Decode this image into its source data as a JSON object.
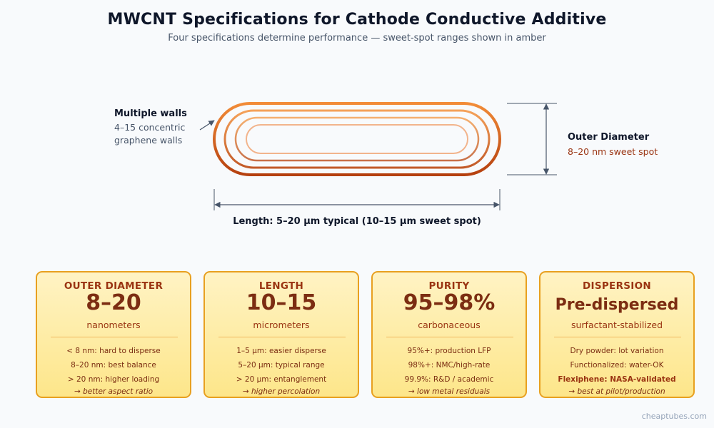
{
  "header": {
    "title": "MWCNT Specifications for Cathode Conductive Additive",
    "subtitle": "Four specifications determine performance — sweet-spot ranges shown in amber"
  },
  "diagram": {
    "walls_label": {
      "title": "Multiple walls",
      "line1": "4–15 concentric",
      "line2": "graphene walls"
    },
    "diameter_label": {
      "title": "Outer Diameter",
      "subtitle": "8–20 nm sweet spot"
    },
    "length_label": "Length: 5–20 µm typical (10–15 µm sweet spot)",
    "colors": {
      "outer_wall_top": "#f28c38",
      "outer_wall_bottom": "#b5400f",
      "inner_wall": "#f2b48c",
      "dimension_line": "#475569"
    }
  },
  "cards": [
    {
      "heading": "OUTER DIAMETER",
      "value": "8–20",
      "unit": "nanometers",
      "lines": [
        "< 8 nm: hard to disperse",
        "8–20 nm: best balance",
        "> 20 nm: higher loading"
      ],
      "footer": "→ better aspect ratio"
    },
    {
      "heading": "LENGTH",
      "value": "10–15",
      "unit": "micrometers",
      "lines": [
        "1–5 µm: easier disperse",
        "5–20 µm: typical range",
        "> 20 µm: entanglement"
      ],
      "footer": "→ higher percolation"
    },
    {
      "heading": "PURITY",
      "value": "95–98%",
      "unit": "carbonaceous",
      "lines": [
        "95%+: production LFP",
        "98%+: NMC/high-rate",
        "99.9%: R&D / academic"
      ],
      "footer": "→ low metal residuals"
    },
    {
      "heading": "DISPERSION",
      "value": "Pre-dispersed",
      "unit": "surfactant-stabilized",
      "lines": [
        "Dry powder: lot variation",
        "Functionalized: water-OK",
        "Flexiphene: NASA-validated"
      ],
      "footer": "→ best at pilot/production"
    }
  ],
  "footer": {
    "watermark": "cheaptubes.com"
  }
}
